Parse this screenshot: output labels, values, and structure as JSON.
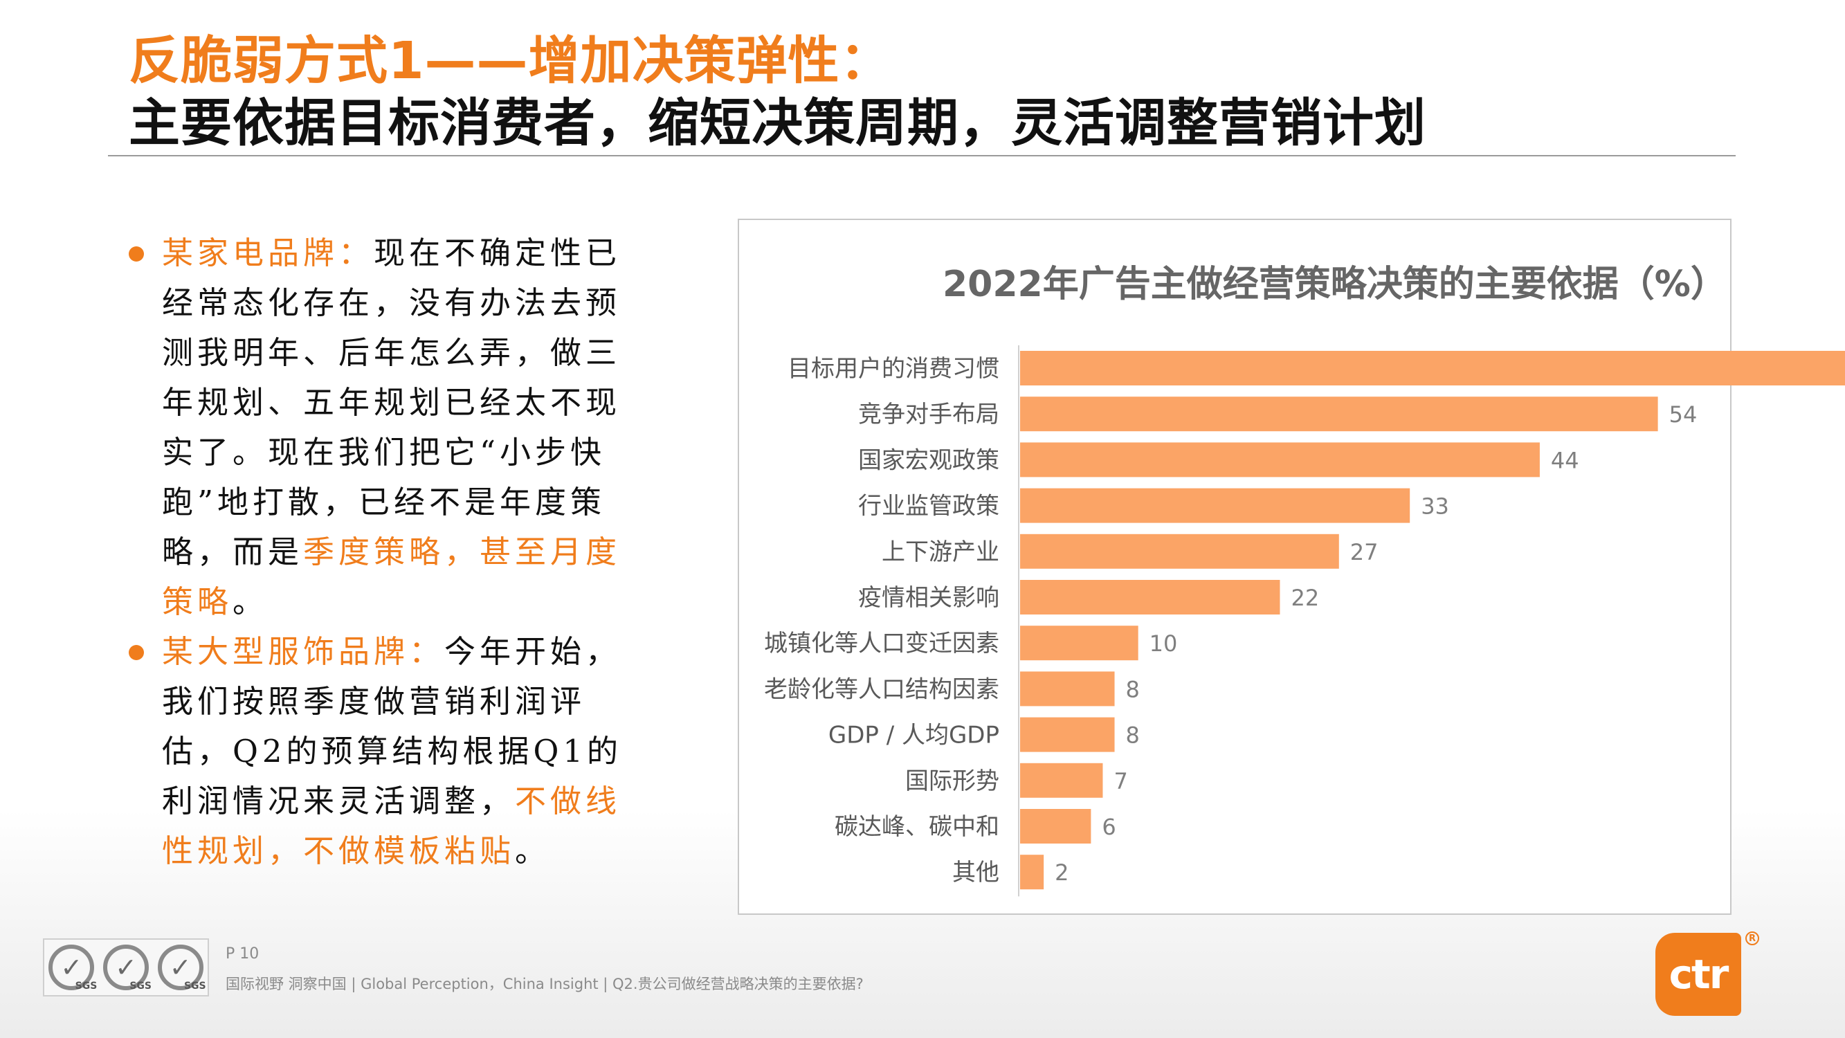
{
  "header": {
    "title_line1": "反脆弱方式1——增加决策弹性：",
    "title_line2": "主要依据目标消费者，缩短决策周期，灵活调整营销计划"
  },
  "bullets": [
    {
      "brand": "某家电品牌：",
      "text": "现在不确定性已经常态化存在，没有办法去预测我明年、后年怎么弄，做三年规划、五年规划已经太不现实了。现在我们把它“小步快跑”地打散，已经不是年度策略，而是",
      "highlight": "季度策略，甚至月度策略",
      "tail": "。"
    },
    {
      "brand": "某大型服饰品牌：",
      "text": "今年开始，我们按照季度做营销利润评估，Q2的预算结构根据Q1的利润情况来灵活调整，",
      "highlight": "不做线性规划，不做模板粘贴",
      "tail": "。"
    }
  ],
  "chart_data": {
    "type": "bar",
    "orientation": "horizontal",
    "title": "2022年广告主做经营策略决策的主要依据（%）",
    "categories": [
      "目标用户的消费习惯",
      "竞争对手布局",
      "国家宏观政策",
      "行业监管政策",
      "上下游产业",
      "疫情相关影响",
      "城镇化等人口变迁因素",
      "老龄化等人口结构因素",
      "GDP / 人均GDP",
      "国际形势",
      "碳达峰、碳中和",
      "其他"
    ],
    "values": [
      71,
      54,
      44,
      33,
      27,
      22,
      10,
      8,
      8,
      7,
      6,
      2
    ],
    "xlim": [
      0,
      75
    ],
    "bar_color": "#fba466",
    "label_color": "#7f7f7f",
    "grid": false,
    "legend": "none"
  },
  "footer": {
    "page": "P 10",
    "text": "国际视野 洞察中国 | Global Perception，China Insight | Q2.贵公司做经营战略决策的主要依据?",
    "seal_label": "SGS",
    "logo_text": "ctr",
    "logo_mark": "R"
  },
  "colors": {
    "accent": "#f07d1c",
    "title_dark": "#111111"
  }
}
